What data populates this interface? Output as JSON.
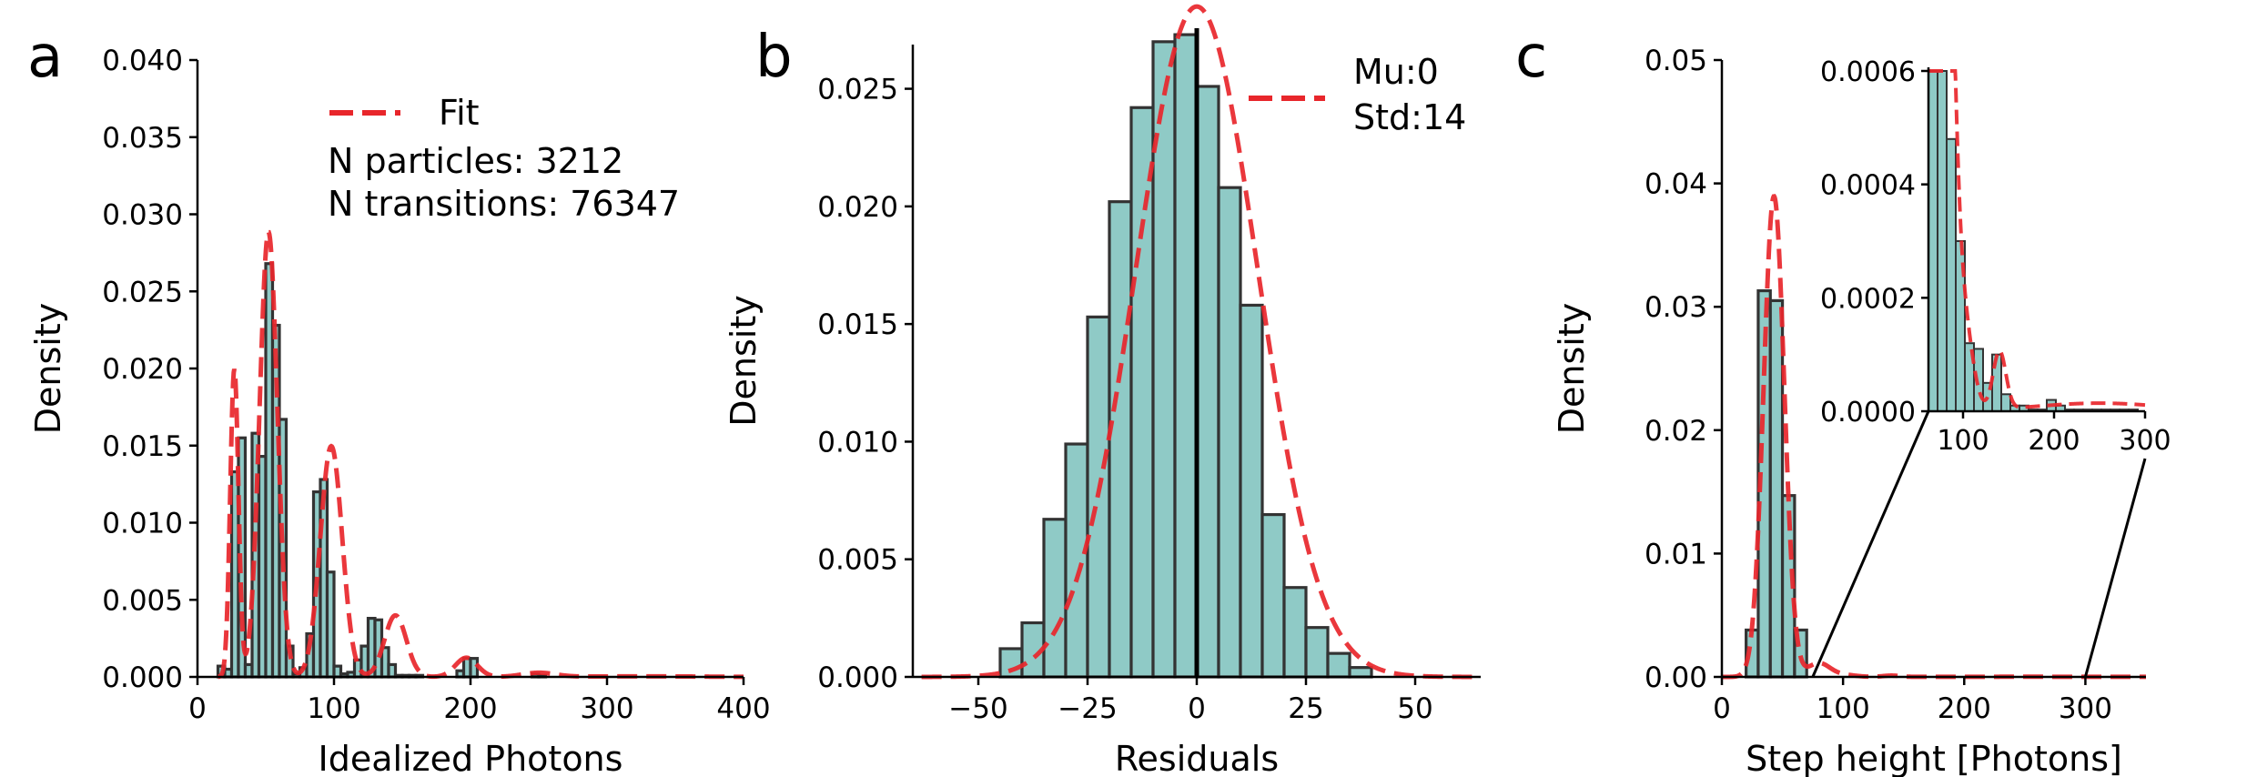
{
  "colors": {
    "bar_fill": "#8fcac6",
    "bar_edge": "#333333",
    "fit_line": "#e8262b",
    "axis": "#000000"
  },
  "chart_data": [
    {
      "panel": "a",
      "type": "bar",
      "xlabel": "Idealized Photons",
      "ylabel": "Density",
      "xlim": [
        0,
        400
      ],
      "ylim": [
        0,
        0.04
      ],
      "xticks": [
        0,
        100,
        200,
        300,
        400
      ],
      "xtick_labels": [
        "0",
        "100",
        "200",
        "300",
        "400"
      ],
      "yticks": [
        0,
        0.005,
        0.01,
        0.015,
        0.02,
        0.025,
        0.03,
        0.035,
        0.04
      ],
      "ytick_labels": [
        "0.000",
        "0.005",
        "0.010",
        "0.015",
        "0.020",
        "0.025",
        "0.030",
        "0.035",
        "0.040"
      ],
      "legend": "upper-center",
      "legend_label": "Fit",
      "annotations": [
        "N particles: 3212",
        "N transitions: 76347"
      ],
      "bins": {
        "left": [
          15,
          20,
          25,
          30,
          35,
          40,
          45,
          50,
          55,
          60,
          65,
          70,
          75,
          80,
          85,
          90,
          95,
          100,
          105,
          110,
          115,
          120,
          125,
          130,
          135,
          140,
          145,
          150,
          155,
          160,
          190,
          195,
          200,
          245,
          250
        ],
        "width": 5,
        "density": [
          0.0007,
          0.0005,
          0.0133,
          0.0155,
          0.0008,
          0.0158,
          0.0143,
          0.0268,
          0.0228,
          0.0167,
          0.002,
          0.0002,
          0.0006,
          0.0028,
          0.012,
          0.0128,
          0.0068,
          0.0007,
          0.0002,
          0.0003,
          0.0011,
          0.002,
          0.0038,
          0.0037,
          0.0019,
          0.0008,
          0.0001,
          0.0001,
          0.0001,
          0.0001,
          0.0004,
          0.0012,
          0.0012,
          0.0002,
          0.0001
        ]
      },
      "fit": {
        "type": "gaussian_mixture",
        "components": [
          {
            "mu": 27,
            "sigma": 3,
            "weight": 0.15
          },
          {
            "mu": 52,
            "sigma": 6.5,
            "weight": 0.47
          },
          {
            "mu": 98,
            "sigma": 8,
            "weight": 0.3
          },
          {
            "mu": 145,
            "sigma": 8,
            "weight": 0.08
          },
          {
            "mu": 197,
            "sigma": 8,
            "weight": 0.025
          },
          {
            "mu": 250,
            "sigma": 12,
            "weight": 0.008
          },
          {
            "mu": 325,
            "sigma": 40,
            "weight": 0.004
          }
        ]
      }
    },
    {
      "panel": "b",
      "type": "bar",
      "xlabel": "Residuals",
      "ylabel": "Density",
      "xlim": [
        -65,
        65
      ],
      "ylim": [
        0,
        0.028
      ],
      "xticks": [
        -50,
        -25,
        0,
        25,
        50
      ],
      "xtick_labels": [
        "−50",
        "−25",
        "0",
        "25",
        "50"
      ],
      "yticks": [
        0,
        0.005,
        0.01,
        0.015,
        0.02,
        0.025
      ],
      "ytick_labels": [
        "0.000",
        "0.005",
        "0.010",
        "0.015",
        "0.020",
        "0.025"
      ],
      "legend": "top-right",
      "legend_label_lines": [
        "Mu:0",
        "Std:14"
      ],
      "vline_x": 0,
      "bins": {
        "left": [
          -45,
          -40,
          -35,
          -30,
          -25,
          -20,
          -15,
          -10,
          -5,
          0,
          5,
          10,
          15,
          20,
          25,
          30,
          35
        ],
        "width": 5,
        "density": [
          0.0012,
          0.0023,
          0.0067,
          0.0099,
          0.0153,
          0.0202,
          0.0242,
          0.027,
          0.0273,
          0.0251,
          0.0208,
          0.0158,
          0.0069,
          0.0038,
          0.0021,
          0.001,
          0.0004
        ]
      },
      "fit": {
        "type": "normal",
        "mu": 0,
        "sigma": 14
      }
    },
    {
      "panel": "c",
      "type": "bar",
      "xlabel": "Step height [Photons]",
      "ylabel": "Density",
      "xlim": [
        0,
        350
      ],
      "ylim": [
        0,
        0.05
      ],
      "xticks": [
        0,
        100,
        200,
        300
      ],
      "xtick_labels": [
        "0",
        "100",
        "200",
        "300"
      ],
      "yticks": [
        0,
        0.01,
        0.02,
        0.03,
        0.04,
        0.05
      ],
      "ytick_labels": [
        "0.00",
        "0.01",
        "0.02",
        "0.03",
        "0.04",
        "0.05"
      ],
      "bins": {
        "left": [
          20,
          30,
          40,
          50,
          60
        ],
        "width": 10,
        "density": [
          0.0038,
          0.0313,
          0.0305,
          0.0147,
          0.0038
        ]
      },
      "fit": {
        "type": "gaussian_mixture",
        "components": [
          {
            "mu": 43,
            "sigma": 8.5,
            "weight": 0.83
          },
          {
            "mu": 80,
            "sigma": 9,
            "weight": 0.025
          },
          {
            "mu": 100,
            "sigma": 10,
            "weight": 0.004
          },
          {
            "mu": 140,
            "sigma": 7,
            "weight": 0.0018
          },
          {
            "mu": 250,
            "sigma": 70,
            "weight": 0.0025
          }
        ]
      },
      "inset": {
        "xlim": [
          62,
          300
        ],
        "ylim": [
          0,
          0.0006
        ],
        "xticks": [
          100,
          200,
          300
        ],
        "xtick_labels": [
          "100",
          "200",
          "300"
        ],
        "yticks": [
          0,
          0.0002,
          0.0004,
          0.0006
        ],
        "ytick_labels": [
          "0.0000",
          "0.0002",
          "0.0004",
          "0.0006"
        ],
        "zoom_from_x": [
          75,
          300
        ],
        "bins": {
          "left": [
            62,
            72,
            82,
            92,
            102,
            112,
            122,
            132,
            142,
            152,
            162,
            172,
            182,
            192,
            202,
            212,
            222,
            232,
            242,
            252,
            262,
            272,
            282
          ],
          "width": 10,
          "density": [
            0.0006,
            0.0006,
            0.00048,
            0.0003,
            0.00012,
            0.00011,
            5e-05,
            0.0001,
            3e-05,
            1e-05,
            1e-05,
            3e-06,
            3e-06,
            2e-05,
            1e-05,
            3e-06,
            3e-06,
            3e-06,
            3e-06,
            3e-06,
            3e-06,
            3e-06,
            3e-06
          ]
        }
      }
    }
  ],
  "panels": {
    "a": {
      "letter": "a"
    },
    "b": {
      "letter": "b"
    },
    "c": {
      "letter": "c"
    }
  }
}
